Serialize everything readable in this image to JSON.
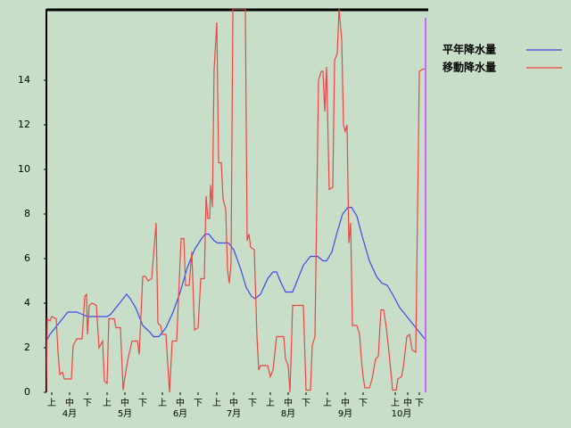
{
  "chart_data": {
    "type": "line",
    "xlim": [
      0,
      214
    ],
    "ylim": [
      0,
      17.2
    ],
    "yticks": [
      0,
      2,
      4,
      6,
      8,
      10,
      12,
      14
    ],
    "xticks": [
      {
        "value": 3,
        "label": "上"
      },
      {
        "value": 13,
        "label": "中"
      },
      {
        "value": 23,
        "label": "下"
      },
      {
        "value": 34,
        "label": "上"
      },
      {
        "value": 44,
        "label": "中"
      },
      {
        "value": 54,
        "label": "下"
      },
      {
        "value": 65,
        "label": "上"
      },
      {
        "value": 75,
        "label": "中"
      },
      {
        "value": 85,
        "label": "下"
      },
      {
        "value": 95.5,
        "label": "上"
      },
      {
        "value": 105,
        "label": "中"
      },
      {
        "value": 115.5,
        "label": "下"
      },
      {
        "value": 125.5,
        "label": "上"
      },
      {
        "value": 135.5,
        "label": "中"
      },
      {
        "value": 145.5,
        "label": "下"
      },
      {
        "value": 157.5,
        "label": "上"
      },
      {
        "value": 167.5,
        "label": "中"
      },
      {
        "value": 177.5,
        "label": "下"
      },
      {
        "value": 195.5,
        "label": "上"
      },
      {
        "value": 202.5,
        "label": "中"
      },
      {
        "value": 209,
        "label": "下"
      }
    ],
    "months": [
      {
        "value": 13,
        "label": "4月"
      },
      {
        "value": 44,
        "label": "5月"
      },
      {
        "value": 75,
        "label": "6月"
      },
      {
        "value": 105,
        "label": "7月"
      },
      {
        "value": 135.5,
        "label": "8月"
      },
      {
        "value": 167.5,
        "label": "9月"
      },
      {
        "value": 199,
        "label": "10月"
      }
    ],
    "marker_x": 212.5,
    "marker_color": "#cc66ff",
    "series": [
      {
        "name": "平年降水量",
        "color": "#4444ee",
        "x": [
          0,
          2,
          6,
          10,
          12,
          17,
          20,
          23,
          34,
          36,
          40,
          44,
          45,
          47,
          50,
          54,
          58,
          60,
          63,
          67,
          71,
          75,
          79,
          83,
          87,
          89,
          91,
          94,
          96,
          102,
          105,
          109,
          112,
          115,
          117,
          120,
          124,
          127,
          129,
          131,
          134,
          138,
          140,
          144,
          148,
          152,
          155,
          157,
          160,
          163,
          166,
          169,
          171,
          174,
          177,
          181,
          185,
          188,
          191,
          194,
          198,
          202,
          206,
          210,
          213
        ],
        "values": [
          2.3,
          2.6,
          3.0,
          3.4,
          3.6,
          3.6,
          3.5,
          3.4,
          3.4,
          3.5,
          3.9,
          4.3,
          4.4,
          4.2,
          3.8,
          3.0,
          2.7,
          2.5,
          2.5,
          2.9,
          3.6,
          4.5,
          5.6,
          6.4,
          6.9,
          7.1,
          7.1,
          6.8,
          6.7,
          6.7,
          6.4,
          5.5,
          4.7,
          4.3,
          4.2,
          4.4,
          5.1,
          5.4,
          5.4,
          5.0,
          4.5,
          4.5,
          4.9,
          5.7,
          6.1,
          6.1,
          5.9,
          5.9,
          6.3,
          7.2,
          8.0,
          8.3,
          8.3,
          7.9,
          7.0,
          5.9,
          5.2,
          4.9,
          4.8,
          4.4,
          3.8,
          3.4,
          3.0,
          2.6,
          2.3
        ]
      },
      {
        "name": "移動降水量",
        "color": "#ee4444",
        "x": [
          0,
          0.5,
          2,
          3,
          5.5,
          6.5,
          7.5,
          9,
          10,
          14,
          15,
          17,
          20,
          21.5,
          22.5,
          23,
          24,
          25.5,
          28,
          29.5,
          31.5,
          32.5,
          34,
          35,
          38,
          39,
          41.5,
          43,
          44,
          46,
          48,
          51,
          52,
          54,
          55.5,
          57,
          59,
          61.5,
          62.5,
          64,
          65,
          67,
          69,
          70.5,
          73,
          75.5,
          77,
          78,
          80,
          81.5,
          83,
          85,
          86.5,
          88.5,
          89.5,
          90.5,
          91.5,
          92,
          93,
          94,
          95.5,
          96.5,
          98,
          99,
          100.5,
          101.5,
          102.5,
          103.5,
          104.5,
          111.5,
          112.5,
          113.5,
          114.5,
          116.5,
          118,
          119,
          120,
          124,
          125.5,
          127,
          129,
          133,
          134,
          135.5,
          136.5,
          138,
          144,
          145.5,
          148,
          149,
          150.5,
          152.5,
          154,
          155,
          156,
          157,
          158.5,
          160.5,
          161.5,
          163,
          164,
          165.5,
          166.5,
          167.5,
          168.5,
          169.5,
          170.5,
          171.5,
          174,
          175.5,
          176.5,
          177.5,
          178.5,
          181,
          182.5,
          184.5,
          186,
          187.5,
          189,
          190.5,
          192,
          194,
          196,
          197,
          199,
          200,
          202,
          203.5,
          205,
          207,
          209,
          211,
          212.5
        ],
        "values": [
          0,
          3.3,
          3.2,
          3.4,
          3.3,
          1.8,
          0.8,
          0.9,
          0.6,
          0.6,
          2.1,
          2.4,
          2.4,
          4.3,
          4.4,
          2.6,
          3.9,
          4.0,
          3.9,
          2.0,
          2.3,
          0.5,
          0.4,
          3.3,
          3.3,
          2.9,
          2.9,
          0.1,
          0.7,
          1.6,
          2.3,
          2.3,
          1.7,
          5.2,
          5.2,
          5.0,
          5.1,
          7.6,
          3.1,
          3.0,
          2.6,
          2.6,
          0,
          2.3,
          2.3,
          6.9,
          6.9,
          4.8,
          4.8,
          6.3,
          2.8,
          2.9,
          5.1,
          5.1,
          8.8,
          7.8,
          7.8,
          9.3,
          8.3,
          14.5,
          16.6,
          10.3,
          10.3,
          8.7,
          8.2,
          5.5,
          4.9,
          5.8,
          17.2,
          17.2,
          6.8,
          7.1,
          6.5,
          6.4,
          2.5,
          1.0,
          1.2,
          1.2,
          0.7,
          1.0,
          2.5,
          2.5,
          1.5,
          1.2,
          0,
          3.9,
          3.9,
          0.1,
          0.1,
          2.1,
          2.5,
          14.0,
          14.4,
          14.4,
          12.6,
          14.6,
          9.1,
          9.2,
          14.9,
          15.2,
          17.2,
          15.8,
          12.0,
          11.7,
          12.0,
          6.7,
          7.6,
          3.0,
          3.0,
          2.6,
          1.5,
          0.7,
          0.2,
          0.2,
          0.6,
          1.5,
          1.6,
          3.7,
          3.7,
          2.9,
          1.8,
          0.1,
          0.1,
          0.6,
          0.7,
          1.1,
          2.5,
          2.6,
          1.9,
          1.8,
          14.4,
          14.5,
          14.5
        ]
      }
    ]
  }
}
